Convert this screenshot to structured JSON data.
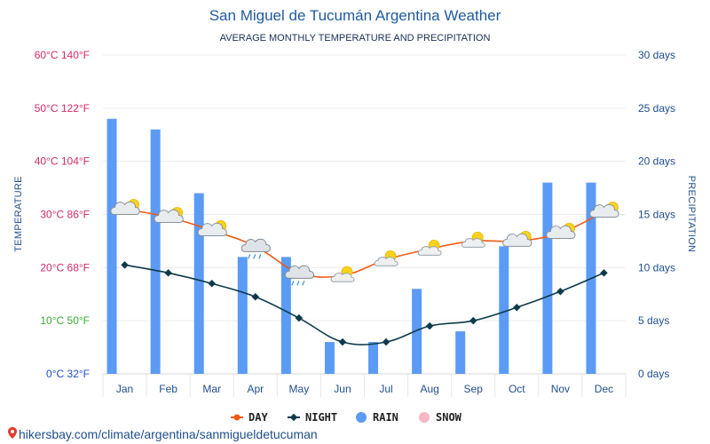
{
  "chart_data": {
    "type": "bar+line",
    "title": "San Miguel de Tucumán Argentina Weather",
    "subtitle": "AVERAGE MONTHLY TEMPERATURE AND PRECIPITATION",
    "ylabel_left": "TEMPERATURE",
    "ylabel_right": "PRECIPITATION",
    "categories": [
      "Jan",
      "Feb",
      "Mar",
      "Apr",
      "May",
      "Jun",
      "Jul",
      "Aug",
      "Sep",
      "Oct",
      "Nov",
      "Dec"
    ],
    "left_ticks": [
      {
        "value": 0,
        "label": "0°C 32°F",
        "color": "#1f4ec8"
      },
      {
        "value": 10,
        "label": "10°C 50°F",
        "color": "#3aa832"
      },
      {
        "value": 20,
        "label": "20°C 68°F",
        "color": "#d42a6b"
      },
      {
        "value": 30,
        "label": "30°C 86°F",
        "color": "#d42a6b"
      },
      {
        "value": 40,
        "label": "40°C 104°F",
        "color": "#d42a6b"
      },
      {
        "value": 50,
        "label": "50°C 122°F",
        "color": "#d42a6b"
      },
      {
        "value": 60,
        "label": "60°C 140°F",
        "color": "#d42a6b"
      }
    ],
    "right_ticks": [
      {
        "value": 0,
        "label": "0 days"
      },
      {
        "value": 5,
        "label": "5 days"
      },
      {
        "value": 10,
        "label": "10 days"
      },
      {
        "value": 15,
        "label": "15 days"
      },
      {
        "value": 20,
        "label": "20 days"
      },
      {
        "value": 25,
        "label": "25 days"
      },
      {
        "value": 30,
        "label": "30 days"
      }
    ],
    "ylim_temperature": [
      0,
      60
    ],
    "ylim_precipitation": [
      0,
      30
    ],
    "series": [
      {
        "name": "DAY",
        "type": "line",
        "color": "#f05a14",
        "values": [
          31,
          29.5,
          27,
          24,
          19,
          18.5,
          21.5,
          23.5,
          25,
          25,
          26.5,
          30.5
        ]
      },
      {
        "name": "NIGHT",
        "type": "line",
        "color": "#0d3a4a",
        "values": [
          20.5,
          19,
          17,
          14.5,
          10.5,
          6,
          6,
          9,
          10,
          12.5,
          15.5,
          19
        ]
      },
      {
        "name": "RAIN",
        "type": "bar",
        "color": "#5b9bf5",
        "values": [
          24,
          23,
          17,
          11,
          11,
          3,
          3,
          8,
          4,
          12,
          18,
          18
        ]
      },
      {
        "name": "SNOW",
        "type": "bar",
        "color": "#f7b7c6",
        "values": [
          0,
          0,
          0,
          0,
          0,
          0,
          0,
          0,
          0,
          0,
          0,
          0
        ]
      }
    ],
    "weather_icons": [
      "partly-cloudy",
      "partly-cloudy",
      "partly-cloudy",
      "rain-cloud",
      "rain-cloud",
      "sun-cloud",
      "sun-cloud",
      "sun-cloud",
      "sun-cloud",
      "partly-cloudy",
      "partly-cloudy",
      "partly-cloudy"
    ],
    "grid": true,
    "legend_placement": "bottom-center"
  },
  "legend": [
    {
      "label": "DAY",
      "color": "#f05a14",
      "icon": "line-dot-icon"
    },
    {
      "label": "NIGHT",
      "color": "#0d3a4a",
      "icon": "line-diamond-icon"
    },
    {
      "label": "RAIN",
      "color": "#5b9bf5",
      "icon": "circle-icon"
    },
    {
      "label": "SNOW",
      "color": "#f7b7c6",
      "icon": "circle-icon"
    }
  ],
  "footer": {
    "text": "hikersbay.com/climate/argentina/sanmigueldetucuman",
    "icon": "map-pin-icon",
    "icon_color": "#e23b2e"
  }
}
